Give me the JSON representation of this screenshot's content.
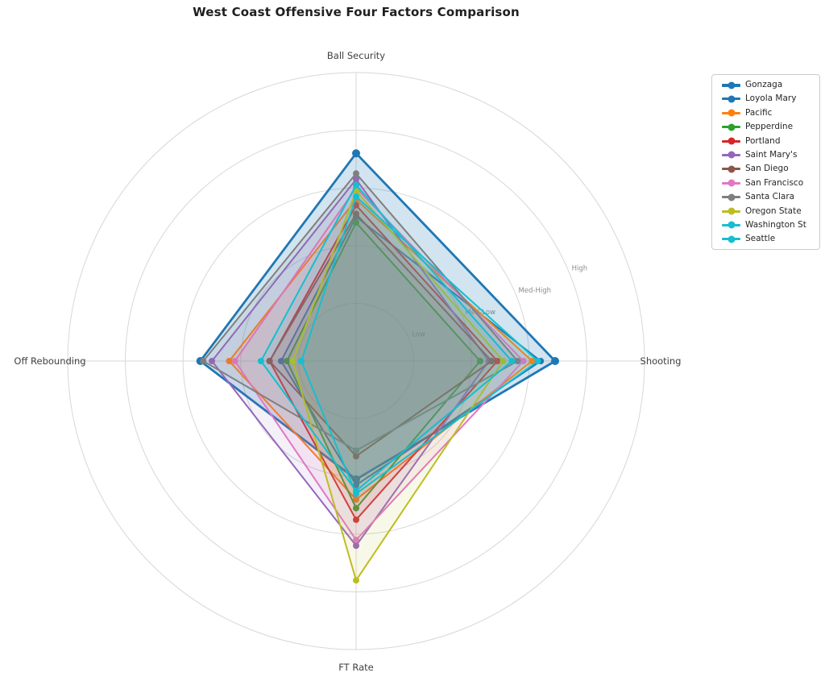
{
  "title": "West Coast Offensive Four Factors Comparison",
  "chart_data": {
    "type": "radar",
    "title": "West Coast Offensive Four Factors Comparison",
    "axes": [
      "Ball Security",
      "Shooting",
      "FT Rate",
      "Off Rebounding"
    ],
    "axis_angles_deg": [
      90,
      0,
      -90,
      180
    ],
    "r_ticks": [
      {
        "label": "Low",
        "value": 0.2
      },
      {
        "label": "Med-Low",
        "value": 0.4
      },
      {
        "label": "Med-High",
        "value": 0.6
      },
      {
        "label": "High",
        "value": 0.8
      },
      {
        "label": "",
        "value": 1.0
      }
    ],
    "r_max": 1.0,
    "tick_label_angle_deg": 22.5,
    "grid": true,
    "legend_position": "upper right",
    "series": [
      {
        "name": "Gonzaga",
        "color": "#1f77b4",
        "highlight": true,
        "values": [
          0.72,
          0.69,
          0.41,
          0.54
        ]
      },
      {
        "name": "Loyola Mary",
        "color": "#1f77b4",
        "highlight": false,
        "values": [
          0.5,
          0.64,
          0.43,
          0.26
        ]
      },
      {
        "name": "Pacific",
        "color": "#ff7f0e",
        "highlight": false,
        "values": [
          0.56,
          0.61,
          0.48,
          0.44
        ]
      },
      {
        "name": "Pepperdine",
        "color": "#2ca02c",
        "highlight": false,
        "values": [
          0.48,
          0.43,
          0.51,
          0.24
        ]
      },
      {
        "name": "Portland",
        "color": "#d62728",
        "highlight": false,
        "values": [
          0.54,
          0.49,
          0.55,
          0.3
        ]
      },
      {
        "name": "Saint Mary's",
        "color": "#9467bd",
        "highlight": false,
        "values": [
          0.63,
          0.46,
          0.64,
          0.5
        ]
      },
      {
        "name": "San Diego",
        "color": "#8c564b",
        "highlight": false,
        "values": [
          0.51,
          0.47,
          0.33,
          0.3
        ]
      },
      {
        "name": "San Francisco",
        "color": "#e377c2",
        "highlight": false,
        "values": [
          0.6,
          0.58,
          0.62,
          0.42
        ]
      },
      {
        "name": "Santa Clara",
        "color": "#7f7f7f",
        "highlight": false,
        "values": [
          0.65,
          0.56,
          0.31,
          0.53
        ]
      },
      {
        "name": "Oregon State",
        "color": "#bcbd22",
        "highlight": false,
        "values": [
          0.59,
          0.51,
          0.76,
          0.22
        ]
      },
      {
        "name": "Washington St",
        "color": "#17becf",
        "highlight": false,
        "values": [
          0.61,
          0.54,
          0.45,
          0.33
        ]
      },
      {
        "name": "Seattle",
        "color": "#17becf",
        "highlight": false,
        "values": [
          0.57,
          0.63,
          0.46,
          0.19
        ]
      }
    ]
  },
  "colors": {
    "background": "#ffffff",
    "grid": "#d7d7d7",
    "axis_label": "#3f3f3f",
    "tick_label": "#8c8c8c",
    "title": "#1f1f1f",
    "legend_border": "#cccccc"
  }
}
